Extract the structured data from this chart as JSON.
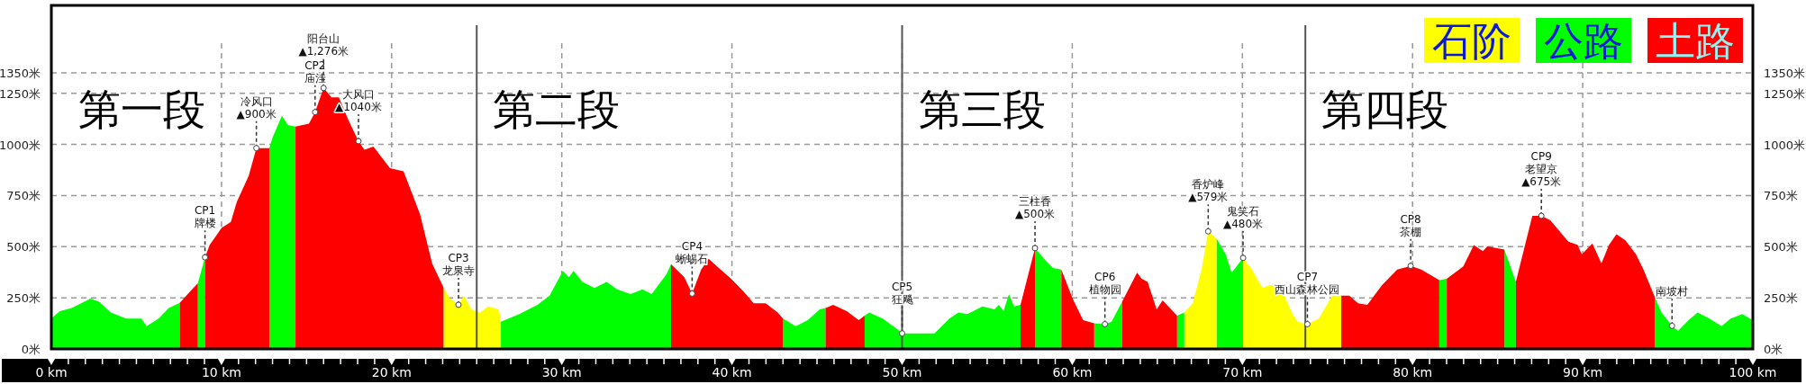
{
  "chart_data": {
    "type": "area",
    "series": [
      {
        "name": "石阶",
        "color": "#ffff00",
        "x": [
          23.05,
          23.43,
          23.93,
          24.25,
          24.69,
          25.2,
          25.66,
          26.3,
          26.42,
          null,
          66.58,
          67.08,
          67.6,
          67.99,
          68.49,
          null,
          70.04,
          70.56,
          71.18,
          71.62,
          72.28,
          72.9,
          73.25,
          73.82,
          74.49,
          75.28,
          75.81
        ],
        "values": [
          300,
          246,
          216,
          261,
          193,
          178,
          208,
          193,
          133,
          null,
          178,
          223,
          388,
          575,
          539,
          null,
          445,
          388,
          298,
          313,
          298,
          178,
          133,
          121,
          148,
          261,
          261
        ]
      },
      {
        "name": "公路",
        "color": "#00ff00",
        "x": [
          0,
          0.5,
          1.2,
          2.3,
          2.8,
          3.5,
          4.4,
          5.3,
          5.6,
          6.3,
          6.9,
          7.55,
          null,
          8.61,
          9.03,
          null,
          12.81,
          13.0,
          13.55,
          13.9,
          14.35,
          null,
          26.42,
          27.5,
          28.57,
          29.28,
          30.07,
          30.42,
          30.69,
          31.22,
          31.92,
          32.63,
          33.25,
          34.04,
          34.75,
          35.28,
          36.16,
          36.42,
          null,
          43.0,
          43.75,
          44.45,
          45.16,
          45.5,
          null,
          47.8,
          48.07,
          48.86,
          49.75,
          50.0,
          51.9,
          52.78,
          53.31,
          53.84,
          54.72,
          55.43,
          55.69,
          55.96,
          56.28,
          56.58,
          56.96,
          null,
          57.81,
          58.43,
          58.87,
          59.36,
          null,
          61.29,
          61.92,
          62.31,
          62.93,
          null,
          66.16,
          66.58,
          null,
          68.49,
          69.02,
          69.37,
          70.04,
          null,
          81.57,
          82.01,
          null,
          85.4,
          86.07,
          null,
          94.24,
          94.63,
          95.25,
          95.6,
          96.22,
          96.75,
          97.45,
          98.16,
          98.69,
          99.39,
          100
        ],
        "values": [
          150,
          185,
          200,
          246,
          231,
          178,
          148,
          148,
          111,
          148,
          200,
          225,
          null,
          321,
          448,
          null,
          982,
          1034,
          1140,
          1095,
          1087,
          null,
          133,
          170,
          216,
          261,
          381,
          351,
          381,
          328,
          298,
          328,
          291,
          268,
          291,
          268,
          366,
          415,
          null,
          148,
          111,
          141,
          193,
          200,
          null,
          163,
          178,
          148,
          95,
          76,
          76,
          148,
          178,
          170,
          208,
          193,
          216,
          185,
          268,
          208,
          216,
          null,
          493,
          433,
          396,
          388,
          null,
          125,
          121,
          133,
          231,
          null,
          163,
          178,
          null,
          539,
          463,
          373,
          445,
          null,
          336,
          343,
          null,
          486,
          328,
          null,
          253,
          178,
          113,
          88,
          141,
          178,
          148,
          111,
          148,
          170,
          140
        ]
      },
      {
        "name": "土路",
        "color": "#ff0000",
        "x": [
          7.55,
          8.1,
          8.61,
          null,
          9.03,
          9.3,
          10.0,
          10.55,
          10.9,
          11.6,
          12.05,
          12.81,
          null,
          14.35,
          15.14,
          15.5,
          16.0,
          16.46,
          16.9,
          17.43,
          18.05,
          18.4,
          18.93,
          19.9,
          20.7,
          21.67,
          22.38,
          23.05,
          null,
          36.42,
          37.2,
          37.66,
          38.19,
          38.63,
          39.33,
          39.95,
          40.66,
          41.28,
          41.98,
          42.69,
          43.0,
          null,
          45.5,
          45.95,
          46.75,
          47.45,
          47.8,
          null,
          56.96,
          57.81,
          null,
          59.36,
          60.02,
          60.64,
          61.29,
          null,
          62.93,
          63.81,
          64.08,
          64.43,
          64.96,
          65.31,
          66.16,
          null,
          75.81,
          76.28,
          76.8,
          77.34,
          78.22,
          79.1,
          79.89,
          80.51,
          81.57,
          null,
          82.01,
          82.98,
          83.6,
          84.13,
          84.39,
          85.4,
          null,
          86.07,
          87.04,
          87.57,
          88.1,
          89.16,
          89.69,
          89.95,
          90.57,
          91.1,
          91.54,
          91.98,
          92.51,
          93.13,
          93.57,
          94.24
        ],
        "values": [
          225,
          276,
          321,
          null,
          448,
          508,
          591,
          621,
          719,
          847,
          982,
          982,
          null,
          1087,
          1102,
          1158,
          1276,
          1230,
          1230,
          1125,
          1016,
          974,
          989,
          884,
          869,
          659,
          418,
          300,
          null,
          415,
          351,
          271,
          388,
          441,
          388,
          343,
          283,
          223,
          223,
          178,
          148,
          null,
          200,
          216,
          185,
          141,
          163,
          null,
          216,
          493,
          null,
          388,
          246,
          141,
          125,
          null,
          231,
          373,
          343,
          328,
          193,
          238,
          163,
          null,
          261,
          261,
          223,
          216,
          313,
          388,
          406,
          388,
          336,
          null,
          343,
          403,
          508,
          478,
          501,
          486,
          null,
          328,
          651,
          651,
          629,
          524,
          509,
          463,
          516,
          418,
          508,
          561,
          531,
          463,
          388,
          253
        ]
      }
    ],
    "annotations": [
      "第一段",
      {
        "text": "CP1\n牌楼",
        "x": 9.03,
        "y": 448
      },
      {
        "text": "冷风口\n▲900米",
        "x": 12.05,
        "y": 982
      },
      {
        "text": "CP2\n庙洼",
        "x": 15.5,
        "y": 1158
      },
      {
        "text": "阳台山\n▲1,276米",
        "x": 16.0,
        "y": 1276
      },
      {
        "text": "大风口\n▲1040米",
        "x": 18.05,
        "y": 1016
      },
      {
        "text": "CP3\n龙泉寺",
        "x": 23.93,
        "y": 216
      },
      {
        "text": "CP4\n蜥蜴石",
        "x": 37.66,
        "y": 271
      },
      {
        "text": "CP5\n狂飚",
        "x": 50.0,
        "y": 76
      },
      {
        "text": "三柱香\n▲500米",
        "x": 57.81,
        "y": 493
      },
      {
        "text": "CP6\n植物园",
        "x": 61.92,
        "y": 121
      },
      {
        "text": "香炉峰\n▲579米",
        "x": 67.99,
        "y": 575
      },
      {
        "text": "鬼笑石\n▲480米",
        "x": 70.04,
        "y": 445
      },
      {
        "text": "CP7\n西山森林公园",
        "x": 73.82,
        "y": 121
      },
      {
        "text": "CP8\n茶棚",
        "x": 79.89,
        "y": 406
      },
      {
        "text": "CP9\n老望京\n▲675米",
        "x": 87.57,
        "y": 651
      },
      {
        "text": "南坡村",
        "x": 95.25,
        "y": 113
      }
    ],
    "ref_lines": [
      {
        "axis": "x",
        "value": 25,
        "label": "第二段",
        "color": "#555555"
      },
      {
        "axis": "x",
        "value": 50,
        "label": "第三段",
        "color": "#555555"
      },
      {
        "axis": "x",
        "value": 73.7,
        "label": "第四段",
        "color": "#555555"
      }
    ],
    "xlim": [
      0,
      100
    ],
    "xticks": [
      {
        "value": 0,
        "label": "0 km"
      },
      {
        "value": 10,
        "label": "10 km"
      },
      {
        "value": 20,
        "label": "20 km"
      },
      {
        "value": 30,
        "label": "30 km"
      },
      {
        "value": 40,
        "label": "40 km"
      },
      {
        "value": 50,
        "label": "50 km"
      },
      {
        "value": 60,
        "label": "60 km"
      },
      {
        "value": 70,
        "label": "70 km"
      },
      {
        "value": 80,
        "label": "80 km"
      },
      {
        "value": 90,
        "label": "90 km"
      },
      {
        "value": 100,
        "label": "100 km"
      }
    ],
    "ylim": [
      0,
      1680
    ],
    "yticks": [
      {
        "value": 0,
        "label": "0米"
      },
      {
        "value": 250,
        "label": "250米"
      },
      {
        "value": 500,
        "label": "500米"
      },
      {
        "value": 750,
        "label": "750米"
      },
      {
        "value": 1000,
        "label": "1000米"
      },
      {
        "value": 1250,
        "label": "1250米"
      },
      {
        "value": 1350,
        "label": "1350米"
      }
    ],
    "y2lim": [
      0,
      1680
    ],
    "y2ticks": [
      {
        "value": 0,
        "label": "0米"
      },
      {
        "value": 250,
        "label": "250米"
      },
      {
        "value": 500,
        "label": "500米"
      },
      {
        "value": 750,
        "label": "750米"
      },
      {
        "value": 1000,
        "label": "1000米"
      },
      {
        "value": 1250,
        "label": "1250米"
      },
      {
        "value": 1350,
        "label": "1350米"
      }
    ],
    "grid": true,
    "legend": "top right"
  }
}
